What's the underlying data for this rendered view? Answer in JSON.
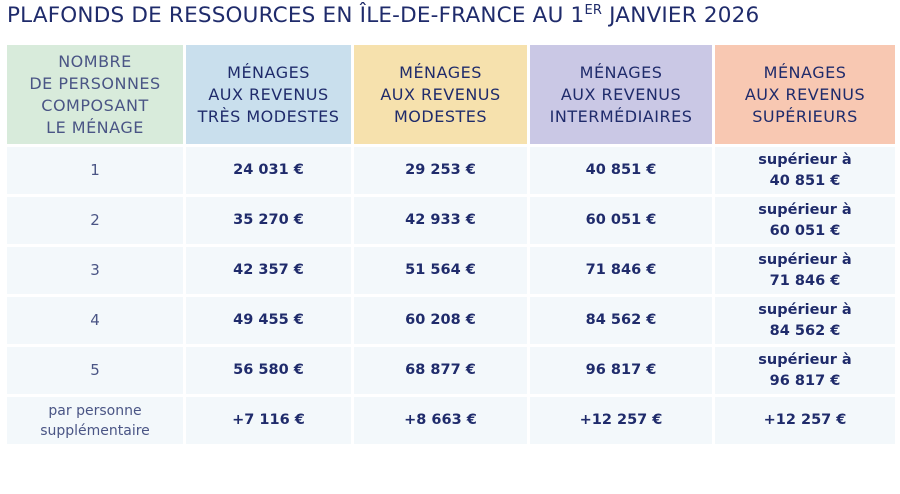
{
  "title": {
    "main": "PLAFONDS DE RESSOURCES EN ÎLE-DE-FRANCE AU 1",
    "sup": "ER",
    "end": " JANVIER 2026"
  },
  "colors": {
    "text": "#1f2b6b",
    "persons": "#d8ebdb",
    "tres_modestes": "#c9dfed",
    "modestes": "#f6e1ad",
    "intermediaires": "#cac8e5",
    "superieurs": "#f8c8b2",
    "cell": "#f3f8fb"
  },
  "headers": [
    [
      "NOMBRE",
      "DE PERSONNES",
      "COMPOSANT",
      "LE MÉNAGE"
    ],
    [
      "MÉNAGES",
      "AUX REVENUS",
      "TRÈS MODESTES"
    ],
    [
      "MÉNAGES",
      "AUX REVENUS",
      "MODESTES"
    ],
    [
      "MÉNAGES",
      "AUX REVENUS",
      "INTERMÉDIAIRES"
    ],
    [
      "MÉNAGES",
      "AUX REVENUS",
      "SUPÉRIEURS"
    ]
  ],
  "rows": [
    {
      "n": "1",
      "a": "24 031 €",
      "b": "29 253 €",
      "c": "40 851 €",
      "d1": "supérieur à",
      "d2": "40 851 €"
    },
    {
      "n": "2",
      "a": "35 270 €",
      "b": "42 933 €",
      "c": "60 051 €",
      "d1": "supérieur à",
      "d2": "60 051 €"
    },
    {
      "n": "3",
      "a": "42 357 €",
      "b": "51 564 €",
      "c": "71 846 €",
      "d1": "supérieur à",
      "d2": "71 846 €"
    },
    {
      "n": "4",
      "a": "49 455 €",
      "b": "60 208 €",
      "c": "84 562 €",
      "d1": "supérieur à",
      "d2": "84 562 €"
    },
    {
      "n": "5",
      "a": "56 580 €",
      "b": "68 877 €",
      "c": "96 817 €",
      "d1": "supérieur à",
      "d2": "96 817 €"
    }
  ],
  "extra": {
    "n1": "par personne",
    "n2": "supplémentaire",
    "a": "+7 116 €",
    "b": "+8 663 €",
    "c": "+12 257 €",
    "d": "+12 257 €"
  }
}
